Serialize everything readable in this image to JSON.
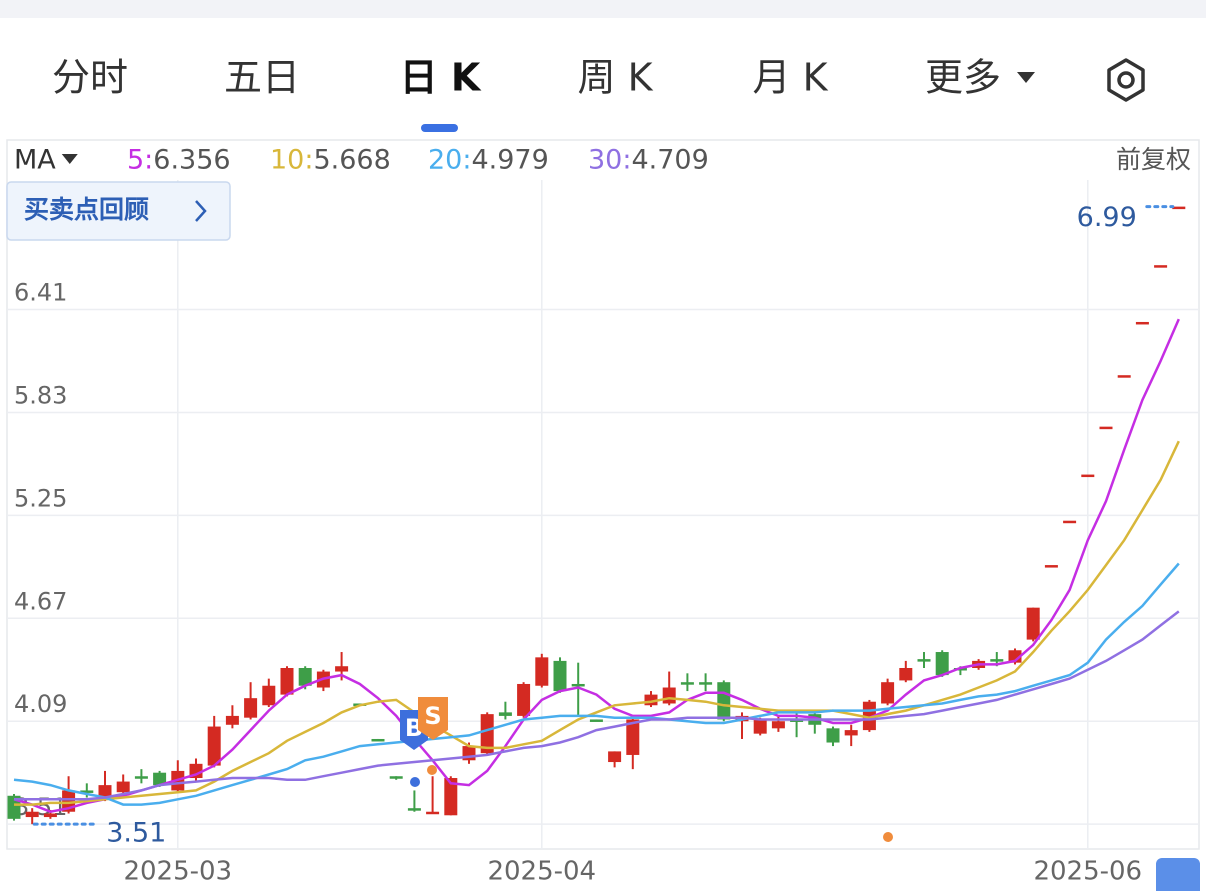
{
  "tabs": [
    "分时",
    "五日",
    "日 K",
    "周 K",
    "月 K",
    "更多"
  ],
  "indicator": "MA",
  "adjustment": "前复权",
  "review_button": "买卖点回顾",
  "trade_markers": [
    "B",
    "S"
  ],
  "chart_data": {
    "type": "candlestick",
    "categories": [
      null,
      null,
      null,
      null,
      null,
      null,
      null,
      null,
      null,
      "2025-03",
      null,
      null,
      null,
      null,
      null,
      null,
      null,
      null,
      null,
      null,
      null,
      null,
      null,
      null,
      null,
      null,
      null,
      null,
      null,
      "2025-04",
      null,
      null,
      null,
      null,
      null,
      null,
      null,
      null,
      null,
      null,
      null,
      null,
      null,
      null,
      null,
      null,
      null,
      null,
      null,
      null,
      null,
      null,
      null,
      null,
      null,
      null,
      null,
      null,
      null,
      "2025-06",
      null,
      null,
      null,
      null,
      null
    ],
    "open": [
      3.67,
      3.55,
      3.55,
      3.58,
      3.7,
      3.65,
      3.69,
      3.78,
      3.8,
      3.7,
      3.77,
      3.84,
      4.07,
      4.11,
      4.18,
      4.24,
      4.39,
      4.28,
      4.37,
      4.19,
      3.99,
      3.78,
      3.6,
      3.58,
      3.56,
      3.87,
      3.91,
      4.14,
      4.12,
      4.29,
      4.43,
      4.3,
      4.1,
      3.86,
      3.9,
      4.18,
      4.19,
      4.31,
      4.31,
      4.31,
      4.09,
      4.02,
      4.05,
      4.1,
      4.13,
      4.05,
      4.01,
      4.04,
      4.19,
      4.32,
      4.44,
      4.48,
      4.39,
      4.39,
      4.44,
      4.42,
      4.55,
      4.97,
      5.22,
      5.48,
      5.75,
      6.04,
      6.34,
      6.66,
      6.99
    ],
    "high": [
      3.68,
      3.6,
      3.59,
      3.78,
      3.74,
      3.81,
      3.79,
      3.82,
      3.81,
      3.87,
      3.88,
      4.12,
      4.18,
      4.31,
      4.33,
      4.4,
      4.4,
      4.38,
      4.48,
      4.19,
      3.99,
      3.78,
      3.7,
      3.78,
      3.78,
      3.97,
      4.14,
      4.2,
      4.31,
      4.47,
      4.45,
      4.42,
      4.1,
      3.92,
      4.11,
      4.26,
      4.37,
      4.36,
      4.36,
      4.32,
      4.14,
      4.11,
      4.12,
      4.14,
      4.15,
      4.06,
      4.07,
      4.21,
      4.33,
      4.43,
      4.48,
      4.49,
      4.4,
      4.44,
      4.48,
      4.5,
      4.73,
      4.97,
      5.22,
      5.48,
      5.75,
      6.04,
      6.34,
      6.66,
      6.99
    ],
    "low": [
      3.53,
      3.51,
      3.54,
      3.57,
      3.66,
      3.64,
      3.67,
      3.74,
      3.72,
      3.69,
      3.75,
      3.83,
      4.05,
      4.1,
      4.17,
      4.23,
      4.27,
      4.26,
      4.32,
      4.18,
      3.98,
      3.76,
      3.58,
      3.57,
      3.56,
      3.85,
      3.9,
      4.1,
      4.11,
      4.28,
      4.25,
      4.12,
      4.09,
      3.83,
      3.82,
      4.17,
      4.18,
      4.26,
      4.26,
      4.09,
      3.99,
      4.01,
      4.03,
      4.0,
      4.02,
      3.95,
      3.95,
      4.03,
      4.18,
      4.31,
      4.39,
      4.34,
      4.35,
      4.38,
      4.4,
      4.41,
      4.54,
      4.97,
      5.22,
      5.48,
      5.75,
      6.04,
      6.34,
      6.66,
      6.99
    ],
    "close": [
      3.54,
      3.58,
      3.57,
      3.7,
      3.69,
      3.73,
      3.75,
      3.77,
      3.73,
      3.81,
      3.85,
      4.06,
      4.12,
      4.22,
      4.29,
      4.39,
      4.29,
      4.37,
      4.4,
      4.18,
      3.98,
      3.77,
      3.59,
      3.58,
      3.77,
      3.95,
      4.13,
      4.12,
      4.3,
      4.45,
      4.26,
      4.29,
      4.09,
      3.92,
      4.1,
      4.24,
      4.28,
      4.3,
      4.3,
      4.1,
      4.12,
      4.1,
      4.09,
      4.09,
      4.07,
      3.97,
      4.04,
      4.2,
      4.31,
      4.39,
      4.43,
      4.35,
      4.38,
      4.43,
      4.43,
      4.49,
      4.73,
      4.97,
      5.22,
      5.48,
      5.75,
      6.04,
      6.34,
      6.66,
      6.99
    ],
    "up_color": "#d42a22",
    "down_color": "#3e9e48",
    "series": [
      {
        "name": "5:",
        "color": "#c52ee3",
        "values": [
          3.65,
          3.62,
          3.58,
          3.6,
          3.63,
          3.65,
          3.67,
          3.7,
          3.73,
          3.76,
          3.79,
          3.84,
          3.93,
          4.04,
          4.15,
          4.24,
          4.29,
          4.33,
          4.35,
          4.3,
          4.22,
          4.12,
          3.99,
          3.87,
          3.74,
          3.73,
          3.81,
          3.95,
          4.1,
          4.21,
          4.26,
          4.28,
          4.24,
          4.16,
          4.12,
          4.12,
          4.14,
          4.21,
          4.25,
          4.25,
          4.21,
          4.16,
          4.12,
          4.12,
          4.11,
          4.08,
          4.08,
          4.11,
          4.15,
          4.24,
          4.32,
          4.35,
          4.39,
          4.41,
          4.41,
          4.43,
          4.52,
          4.66,
          4.83,
          5.11,
          5.33,
          5.62,
          5.9,
          6.12,
          6.356
        ]
      },
      {
        "name": "10:",
        "color": "#d8b73a",
        "values": [
          3.62,
          3.62,
          3.63,
          3.63,
          3.64,
          3.65,
          3.66,
          3.67,
          3.68,
          3.69,
          3.7,
          3.75,
          3.81,
          3.86,
          3.91,
          3.98,
          4.03,
          4.08,
          4.14,
          4.18,
          4.2,
          4.21,
          4.14,
          4.07,
          4.01,
          3.95,
          3.94,
          3.94,
          3.96,
          3.98,
          4.04,
          4.1,
          4.14,
          4.18,
          4.19,
          4.2,
          4.22,
          4.21,
          4.2,
          4.18,
          4.17,
          4.16,
          4.15,
          4.15,
          4.15,
          4.15,
          4.13,
          4.11,
          4.13,
          4.15,
          4.18,
          4.21,
          4.24,
          4.28,
          4.32,
          4.37,
          4.48,
          4.6,
          4.71,
          4.83,
          4.97,
          5.11,
          5.28,
          5.45,
          5.668
        ]
      },
      {
        "name": "20:",
        "color": "#4aaeee",
        "values": [
          3.76,
          3.75,
          3.73,
          3.7,
          3.68,
          3.66,
          3.62,
          3.62,
          3.63,
          3.65,
          3.67,
          3.7,
          3.73,
          3.76,
          3.79,
          3.82,
          3.87,
          3.89,
          3.92,
          3.95,
          3.96,
          3.97,
          3.98,
          3.99,
          4.0,
          4.01,
          4.04,
          4.07,
          4.1,
          4.11,
          4.12,
          4.12,
          4.12,
          4.11,
          4.11,
          4.11,
          4.1,
          4.09,
          4.08,
          4.08,
          4.1,
          4.12,
          4.14,
          4.14,
          4.14,
          4.15,
          4.15,
          4.15,
          4.16,
          4.17,
          4.18,
          4.19,
          4.21,
          4.23,
          4.24,
          4.26,
          4.29,
          4.32,
          4.35,
          4.42,
          4.55,
          4.65,
          4.74,
          4.86,
          4.979
        ]
      },
      {
        "name": "30:",
        "color": "#8f70e2",
        "values": [
          3.65,
          3.65,
          3.65,
          3.65,
          3.65,
          3.66,
          3.68,
          3.7,
          3.73,
          3.74,
          3.75,
          3.76,
          3.77,
          3.77,
          3.77,
          3.76,
          3.76,
          3.78,
          3.8,
          3.82,
          3.84,
          3.85,
          3.86,
          3.87,
          3.88,
          3.89,
          3.9,
          3.92,
          3.94,
          3.95,
          3.97,
          4.0,
          4.04,
          4.06,
          4.08,
          4.1,
          4.1,
          4.11,
          4.11,
          4.11,
          4.11,
          4.1,
          4.1,
          4.1,
          4.1,
          4.1,
          4.1,
          4.1,
          4.11,
          4.12,
          4.13,
          4.15,
          4.17,
          4.19,
          4.21,
          4.24,
          4.27,
          4.3,
          4.33,
          4.38,
          4.43,
          4.49,
          4.55,
          4.63,
          4.709
        ]
      }
    ],
    "ylim": [
      3.37,
      7.14
    ],
    "yticks": [
      3.51,
      4.09,
      4.67,
      5.25,
      5.83,
      6.41
    ],
    "grid": true
  }
}
